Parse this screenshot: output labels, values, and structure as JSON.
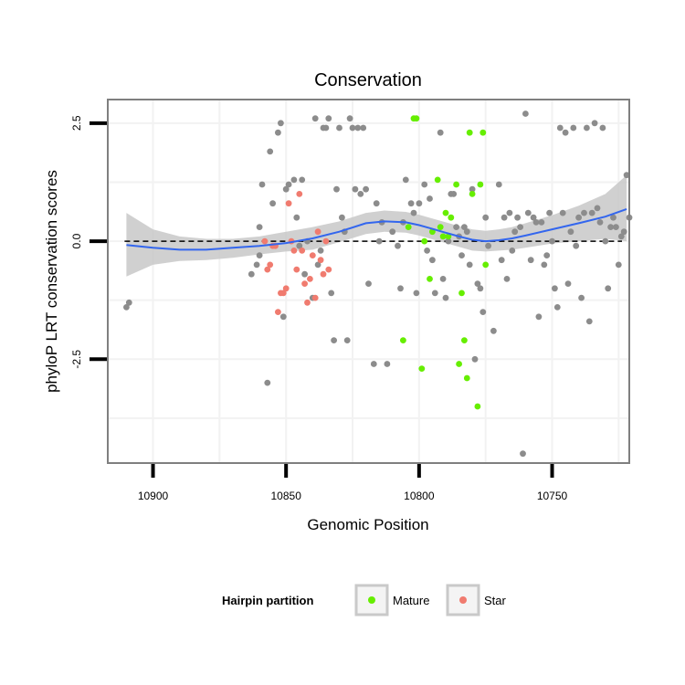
{
  "chart_data": {
    "type": "scatter",
    "title": "Conservation",
    "xlabel": "Genomic Position",
    "ylabel": "phyloP LRT conservation scores",
    "x_reversed": true,
    "xlim": [
      10917,
      10721
    ],
    "ylim": [
      -4.7,
      3.0
    ],
    "x_ticks": [
      10900,
      10850,
      10800,
      10750
    ],
    "x_tick_labels": [
      "10900",
      "10850",
      "10800",
      "10750"
    ],
    "y_ticks": [
      -2.5,
      0,
      2.5
    ],
    "y_tick_labels": [
      "-2.5",
      "0.0",
      "2.5"
    ],
    "reference_line": {
      "y": 0,
      "style": "dashed"
    },
    "colors": {
      "other": "#8c8c8c",
      "mature": "#66ee00",
      "star": "#f07b6f",
      "smooth": "#3366ee",
      "band": "#c8c8c8",
      "grid": "#f2f2f2",
      "frame": "#7f7f7f"
    },
    "legend": {
      "title": "Hairpin partition",
      "placement": "bottom",
      "entries": [
        {
          "key": "mature",
          "label": "Mature"
        },
        {
          "key": "star",
          "label": "Star"
        }
      ]
    },
    "series": [
      {
        "key": "other",
        "points": [
          [
            10910,
            -1.4
          ],
          [
            10909,
            -1.3
          ],
          [
            10863,
            -0.7
          ],
          [
            10861,
            -0.5
          ],
          [
            10860,
            -0.3
          ],
          [
            10860,
            0.3
          ],
          [
            10859,
            1.2
          ],
          [
            10857,
            -3.0
          ],
          [
            10856,
            1.9
          ],
          [
            10855,
            0.8
          ],
          [
            10853,
            2.3
          ],
          [
            10852,
            2.5
          ],
          [
            10851,
            -1.6
          ],
          [
            10850,
            1.1
          ],
          [
            10849,
            1.2
          ],
          [
            10847,
            1.3
          ],
          [
            10846,
            0.5
          ],
          [
            10845,
            -0.1
          ],
          [
            10844,
            1.3
          ],
          [
            10843,
            -0.7
          ],
          [
            10842,
            0.0
          ],
          [
            10840,
            -1.2
          ],
          [
            10839,
            2.6
          ],
          [
            10838,
            -0.5
          ],
          [
            10837,
            -0.2
          ],
          [
            10836,
            2.4
          ],
          [
            10835,
            2.4
          ],
          [
            10834,
            2.6
          ],
          [
            10833,
            -1.1
          ],
          [
            10832,
            -2.1
          ],
          [
            10831,
            1.1
          ],
          [
            10830,
            2.4
          ],
          [
            10829,
            0.5
          ],
          [
            10828,
            0.2
          ],
          [
            10827,
            -2.1
          ],
          [
            10826,
            2.6
          ],
          [
            10825,
            2.4
          ],
          [
            10824,
            1.1
          ],
          [
            10823,
            2.4
          ],
          [
            10822,
            1.0
          ],
          [
            10821,
            2.4
          ],
          [
            10820,
            1.1
          ],
          [
            10819,
            -0.9
          ],
          [
            10817,
            -2.6
          ],
          [
            10816,
            0.8
          ],
          [
            10815,
            0.0
          ],
          [
            10814,
            0.4
          ],
          [
            10812,
            -2.6
          ],
          [
            10810,
            0.2
          ],
          [
            10808,
            -0.1
          ],
          [
            10807,
            -1.0
          ],
          [
            10806,
            0.4
          ],
          [
            10805,
            1.3
          ],
          [
            10803,
            0.8
          ],
          [
            10802,
            0.6
          ],
          [
            10801,
            -1.1
          ],
          [
            10800,
            0.8
          ],
          [
            10798,
            1.2
          ],
          [
            10797,
            -0.2
          ],
          [
            10796,
            0.9
          ],
          [
            10795,
            -0.4
          ],
          [
            10794,
            -1.1
          ],
          [
            10792,
            2.3
          ],
          [
            10791,
            -0.8
          ],
          [
            10790,
            -1.2
          ],
          [
            10789,
            0.0
          ],
          [
            10788,
            1.0
          ],
          [
            10787,
            1.0
          ],
          [
            10786,
            0.3
          ],
          [
            10785,
            0.1
          ],
          [
            10784,
            -0.3
          ],
          [
            10783,
            0.3
          ],
          [
            10782,
            0.2
          ],
          [
            10781,
            -0.5
          ],
          [
            10780,
            1.1
          ],
          [
            10779,
            -2.5
          ],
          [
            10778,
            -0.9
          ],
          [
            10777,
            -1.0
          ],
          [
            10776,
            -1.5
          ],
          [
            10775,
            0.5
          ],
          [
            10774,
            -0.1
          ],
          [
            10772,
            -1.9
          ],
          [
            10770,
            1.2
          ],
          [
            10769,
            -0.4
          ],
          [
            10768,
            0.5
          ],
          [
            10767,
            -0.8
          ],
          [
            10766,
            0.6
          ],
          [
            10765,
            -0.2
          ],
          [
            10764,
            0.2
          ],
          [
            10763,
            0.5
          ],
          [
            10762,
            0.3
          ],
          [
            10761,
            -4.5
          ],
          [
            10760,
            2.7
          ],
          [
            10759,
            0.6
          ],
          [
            10758,
            -0.4
          ],
          [
            10757,
            0.5
          ],
          [
            10756,
            0.4
          ],
          [
            10755,
            -1.6
          ],
          [
            10754,
            0.4
          ],
          [
            10753,
            -0.5
          ],
          [
            10752,
            -0.3
          ],
          [
            10751,
            0.6
          ],
          [
            10750,
            0.0
          ],
          [
            10749,
            -1.0
          ],
          [
            10748,
            -1.4
          ],
          [
            10747,
            2.4
          ],
          [
            10746,
            0.6
          ],
          [
            10745,
            2.3
          ],
          [
            10744,
            -0.9
          ],
          [
            10743,
            0.2
          ],
          [
            10742,
            2.4
          ],
          [
            10741,
            -0.1
          ],
          [
            10740,
            0.5
          ],
          [
            10739,
            -1.2
          ],
          [
            10738,
            0.6
          ],
          [
            10737,
            2.4
          ],
          [
            10736,
            -1.7
          ],
          [
            10735,
            0.6
          ],
          [
            10734,
            2.5
          ],
          [
            10733,
            0.7
          ],
          [
            10732,
            0.4
          ],
          [
            10731,
            2.4
          ],
          [
            10730,
            0.0
          ],
          [
            10729,
            -1.0
          ],
          [
            10728,
            0.3
          ],
          [
            10727,
            0.5
          ],
          [
            10726,
            0.3
          ],
          [
            10725,
            -0.5
          ],
          [
            10724,
            0.1
          ],
          [
            10723,
            0.2
          ],
          [
            10722,
            1.4
          ],
          [
            10721,
            0.5
          ]
        ]
      },
      {
        "key": "mature",
        "points": [
          [
            10806,
            -2.1
          ],
          [
            10804,
            0.3
          ],
          [
            10802,
            2.6
          ],
          [
            10801,
            2.6
          ],
          [
            10799,
            -2.7
          ],
          [
            10798,
            0.0
          ],
          [
            10796,
            -0.8
          ],
          [
            10795,
            0.2
          ],
          [
            10793,
            1.3
          ],
          [
            10792,
            0.3
          ],
          [
            10791,
            0.1
          ],
          [
            10790,
            0.6
          ],
          [
            10789,
            0.1
          ],
          [
            10788,
            0.5
          ],
          [
            10786,
            1.2
          ],
          [
            10785,
            -2.6
          ],
          [
            10784,
            -1.1
          ],
          [
            10783,
            -2.1
          ],
          [
            10782,
            -2.9
          ],
          [
            10781,
            2.3
          ],
          [
            10780,
            1.0
          ],
          [
            10778,
            -3.5
          ],
          [
            10777,
            1.2
          ],
          [
            10776,
            2.3
          ],
          [
            10775,
            -0.5
          ]
        ]
      },
      {
        "key": "star",
        "points": [
          [
            10858,
            0.0
          ],
          [
            10857,
            -0.6
          ],
          [
            10856,
            -0.5
          ],
          [
            10855,
            -0.1
          ],
          [
            10854,
            -0.1
          ],
          [
            10853,
            -1.5
          ],
          [
            10852,
            -1.1
          ],
          [
            10851,
            -1.1
          ],
          [
            10850,
            -1.0
          ],
          [
            10849,
            0.8
          ],
          [
            10848,
            0.0
          ],
          [
            10847,
            -0.2
          ],
          [
            10846,
            -0.6
          ],
          [
            10845,
            1.0
          ],
          [
            10844,
            -0.2
          ],
          [
            10843,
            -0.9
          ],
          [
            10842,
            -1.3
          ],
          [
            10841,
            -0.8
          ],
          [
            10840,
            -0.3
          ],
          [
            10839,
            -1.2
          ],
          [
            10838,
            0.2
          ],
          [
            10837,
            -0.4
          ],
          [
            10836,
            -0.7
          ],
          [
            10835,
            0.0
          ],
          [
            10834,
            -0.6
          ]
        ]
      }
    ],
    "smooth_line": {
      "x": [
        10910,
        10900,
        10890,
        10880,
        10870,
        10860,
        10850,
        10840,
        10830,
        10820,
        10813,
        10805,
        10800,
        10795,
        10790,
        10785,
        10780,
        10775,
        10770,
        10765,
        10760,
        10750,
        10740,
        10730,
        10722
      ],
      "y": [
        -0.08,
        -0.14,
        -0.18,
        -0.18,
        -0.14,
        -0.1,
        -0.04,
        0.06,
        0.2,
        0.38,
        0.42,
        0.4,
        0.34,
        0.26,
        0.18,
        0.1,
        0.03,
        0.0,
        0.02,
        0.06,
        0.12,
        0.25,
        0.38,
        0.52,
        0.68
      ],
      "band_upper": [
        0.6,
        0.25,
        0.1,
        0.05,
        0.05,
        0.1,
        0.2,
        0.3,
        0.42,
        0.6,
        0.65,
        0.62,
        0.56,
        0.48,
        0.4,
        0.32,
        0.25,
        0.22,
        0.25,
        0.3,
        0.38,
        0.55,
        0.75,
        1.0,
        1.4
      ],
      "band_lower": [
        -0.75,
        -0.5,
        -0.42,
        -0.4,
        -0.35,
        -0.28,
        -0.22,
        -0.18,
        -0.02,
        0.15,
        0.2,
        0.18,
        0.12,
        0.04,
        -0.04,
        -0.12,
        -0.2,
        -0.22,
        -0.2,
        -0.18,
        -0.14,
        -0.05,
        0.0,
        0.05,
        0.0
      ]
    }
  }
}
